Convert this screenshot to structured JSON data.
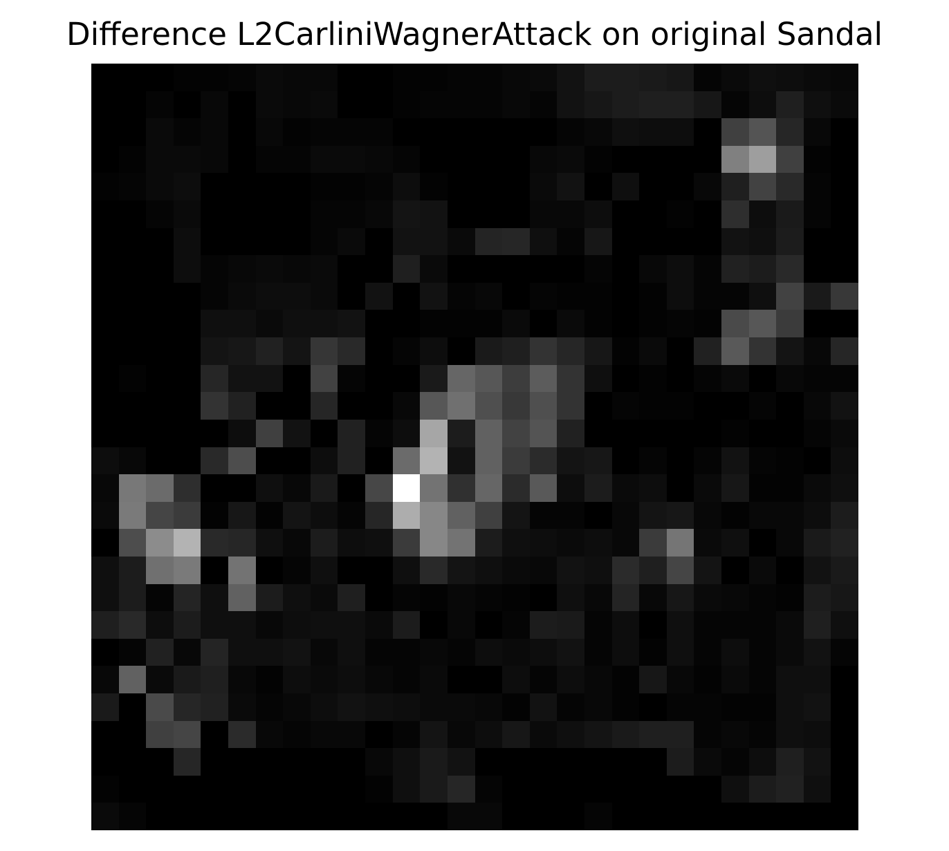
{
  "chart_data": {
    "type": "heatmap",
    "title": "Difference L2CarliniWagnerAttack on original Sandal",
    "colormap": "gray",
    "value_range": [
      0,
      1
    ],
    "axes_visible": false,
    "rows": 28,
    "cols": 28,
    "values": [
      [
        0.0,
        0.0,
        0.0,
        0.01,
        0.01,
        0.02,
        0.04,
        0.03,
        0.03,
        0.0,
        0.0,
        0.01,
        0.01,
        0.02,
        0.02,
        0.03,
        0.04,
        0.07,
        0.11,
        0.11,
        0.1,
        0.09,
        0.02,
        0.04,
        0.06,
        0.05,
        0.04,
        0.03
      ],
      [
        0.0,
        0.0,
        0.02,
        0.0,
        0.03,
        0.0,
        0.04,
        0.03,
        0.04,
        0.0,
        0.0,
        0.01,
        0.02,
        0.02,
        0.02,
        0.03,
        0.02,
        0.07,
        0.09,
        0.11,
        0.12,
        0.12,
        0.09,
        0.02,
        0.05,
        0.12,
        0.06,
        0.04
      ],
      [
        0.0,
        0.0,
        0.04,
        0.02,
        0.03,
        0.0,
        0.03,
        0.01,
        0.02,
        0.02,
        0.02,
        0.0,
        0.0,
        0.0,
        0.0,
        0.0,
        0.0,
        0.02,
        0.03,
        0.06,
        0.05,
        0.05,
        0.0,
        0.25,
        0.33,
        0.15,
        0.03,
        0.0
      ],
      [
        0.0,
        0.01,
        0.04,
        0.04,
        0.03,
        0.0,
        0.02,
        0.02,
        0.04,
        0.04,
        0.03,
        0.02,
        0.0,
        0.0,
        0.0,
        0.0,
        0.03,
        0.04,
        0.01,
        0.0,
        0.0,
        0.0,
        0.0,
        0.5,
        0.62,
        0.25,
        0.01,
        0.0
      ],
      [
        0.01,
        0.02,
        0.04,
        0.05,
        0.0,
        0.0,
        0.0,
        0.0,
        0.01,
        0.01,
        0.02,
        0.05,
        0.01,
        0.0,
        0.0,
        0.0,
        0.04,
        0.07,
        0.0,
        0.06,
        0.0,
        0.0,
        0.03,
        0.12,
        0.26,
        0.16,
        0.02,
        0.0
      ],
      [
        0.0,
        0.0,
        0.02,
        0.04,
        0.0,
        0.0,
        0.0,
        0.0,
        0.02,
        0.02,
        0.03,
        0.08,
        0.07,
        0.0,
        0.0,
        0.0,
        0.03,
        0.03,
        0.05,
        0.0,
        0.0,
        0.01,
        0.0,
        0.18,
        0.05,
        0.1,
        0.02,
        0.0
      ],
      [
        0.0,
        0.0,
        0.0,
        0.05,
        0.0,
        0.0,
        0.0,
        0.0,
        0.02,
        0.04,
        0.0,
        0.07,
        0.07,
        0.04,
        0.14,
        0.15,
        0.06,
        0.02,
        0.09,
        0.0,
        0.0,
        0.0,
        0.0,
        0.07,
        0.06,
        0.11,
        0.0,
        0.0
      ],
      [
        0.0,
        0.0,
        0.0,
        0.05,
        0.02,
        0.03,
        0.04,
        0.03,
        0.04,
        0.0,
        0.0,
        0.12,
        0.04,
        0.0,
        0.0,
        0.0,
        0.0,
        0.0,
        0.02,
        0.0,
        0.03,
        0.05,
        0.02,
        0.13,
        0.11,
        0.16,
        0.0,
        0.0
      ],
      [
        0.0,
        0.0,
        0.0,
        0.0,
        0.02,
        0.04,
        0.05,
        0.05,
        0.04,
        0.0,
        0.07,
        0.0,
        0.07,
        0.02,
        0.03,
        0.0,
        0.02,
        0.01,
        0.01,
        0.0,
        0.01,
        0.05,
        0.02,
        0.02,
        0.06,
        0.26,
        0.1,
        0.22
      ],
      [
        0.0,
        0.0,
        0.0,
        0.0,
        0.06,
        0.06,
        0.04,
        0.06,
        0.06,
        0.07,
        0.0,
        0.0,
        0.01,
        0.01,
        0.01,
        0.04,
        0.0,
        0.04,
        0.01,
        0.0,
        0.01,
        0.02,
        0.01,
        0.29,
        0.34,
        0.23,
        0.0,
        0.0
      ],
      [
        0.0,
        0.0,
        0.0,
        0.0,
        0.08,
        0.09,
        0.13,
        0.08,
        0.21,
        0.16,
        0.0,
        0.02,
        0.05,
        0.0,
        0.1,
        0.12,
        0.2,
        0.15,
        0.09,
        0.01,
        0.04,
        0.0,
        0.13,
        0.35,
        0.2,
        0.08,
        0.03,
        0.15
      ],
      [
        0.0,
        0.01,
        0.0,
        0.0,
        0.15,
        0.07,
        0.07,
        0.0,
        0.26,
        0.02,
        0.0,
        0.0,
        0.1,
        0.4,
        0.34,
        0.24,
        0.36,
        0.2,
        0.06,
        0.0,
        0.01,
        0.0,
        0.02,
        0.04,
        0.0,
        0.03,
        0.02,
        0.02
      ],
      [
        0.0,
        0.0,
        0.0,
        0.0,
        0.2,
        0.13,
        0.0,
        0.0,
        0.15,
        0.0,
        0.0,
        0.03,
        0.34,
        0.44,
        0.31,
        0.22,
        0.31,
        0.2,
        0.0,
        0.02,
        0.01,
        0.01,
        0.0,
        0.0,
        0.02,
        0.0,
        0.03,
        0.07
      ],
      [
        0.0,
        0.0,
        0.0,
        0.0,
        0.0,
        0.05,
        0.25,
        0.07,
        0.0,
        0.13,
        0.02,
        0.05,
        0.65,
        0.11,
        0.38,
        0.26,
        0.33,
        0.13,
        0.0,
        0.0,
        0.0,
        0.0,
        0.0,
        0.01,
        0.0,
        0.0,
        0.02,
        0.04
      ],
      [
        0.05,
        0.03,
        0.0,
        0.0,
        0.16,
        0.3,
        0.0,
        0.0,
        0.05,
        0.13,
        0.0,
        0.42,
        0.7,
        0.07,
        0.38,
        0.23,
        0.17,
        0.08,
        0.09,
        0.0,
        0.02,
        0.0,
        0.02,
        0.07,
        0.02,
        0.01,
        0.0,
        0.05
      ],
      [
        0.03,
        0.47,
        0.42,
        0.18,
        0.0,
        0.0,
        0.06,
        0.03,
        0.1,
        0.0,
        0.28,
        1.0,
        0.45,
        0.19,
        0.4,
        0.17,
        0.35,
        0.05,
        0.11,
        0.04,
        0.05,
        0.0,
        0.04,
        0.09,
        0.01,
        0.01,
        0.04,
        0.06
      ],
      [
        0.04,
        0.48,
        0.27,
        0.23,
        0.01,
        0.09,
        0.01,
        0.08,
        0.05,
        0.02,
        0.15,
        0.68,
        0.53,
        0.38,
        0.25,
        0.08,
        0.02,
        0.02,
        0.0,
        0.03,
        0.08,
        0.09,
        0.03,
        0.01,
        0.03,
        0.03,
        0.05,
        0.11
      ],
      [
        0.0,
        0.3,
        0.55,
        0.7,
        0.16,
        0.15,
        0.06,
        0.03,
        0.11,
        0.05,
        0.06,
        0.23,
        0.53,
        0.45,
        0.11,
        0.06,
        0.05,
        0.04,
        0.05,
        0.03,
        0.23,
        0.46,
        0.04,
        0.06,
        0.0,
        0.03,
        0.1,
        0.13
      ],
      [
        0.06,
        0.11,
        0.44,
        0.48,
        0.0,
        0.45,
        0.0,
        0.02,
        0.06,
        0.0,
        0.0,
        0.06,
        0.16,
        0.08,
        0.06,
        0.04,
        0.03,
        0.07,
        0.06,
        0.17,
        0.12,
        0.27,
        0.08,
        0.0,
        0.04,
        0.0,
        0.07,
        0.1
      ],
      [
        0.06,
        0.11,
        0.02,
        0.14,
        0.06,
        0.38,
        0.11,
        0.06,
        0.04,
        0.12,
        0.0,
        0.02,
        0.01,
        0.03,
        0.02,
        0.01,
        0.0,
        0.06,
        0.03,
        0.14,
        0.03,
        0.09,
        0.04,
        0.03,
        0.02,
        0.01,
        0.11,
        0.09
      ],
      [
        0.12,
        0.16,
        0.05,
        0.11,
        0.06,
        0.06,
        0.03,
        0.05,
        0.06,
        0.06,
        0.04,
        0.11,
        0.0,
        0.03,
        0.0,
        0.02,
        0.11,
        0.1,
        0.02,
        0.05,
        0.0,
        0.06,
        0.02,
        0.02,
        0.02,
        0.04,
        0.12,
        0.06
      ],
      [
        0.0,
        0.02,
        0.13,
        0.03,
        0.14,
        0.06,
        0.06,
        0.07,
        0.03,
        0.06,
        0.02,
        0.02,
        0.03,
        0.02,
        0.05,
        0.04,
        0.05,
        0.07,
        0.02,
        0.05,
        0.01,
        0.06,
        0.02,
        0.05,
        0.02,
        0.04,
        0.07,
        0.02
      ],
      [
        0.03,
        0.38,
        0.04,
        0.1,
        0.12,
        0.03,
        0.01,
        0.05,
        0.04,
        0.05,
        0.03,
        0.02,
        0.04,
        0.0,
        0.0,
        0.05,
        0.02,
        0.05,
        0.03,
        0.01,
        0.09,
        0.03,
        0.01,
        0.04,
        0.02,
        0.06,
        0.06,
        0.0
      ],
      [
        0.1,
        0.0,
        0.29,
        0.15,
        0.13,
        0.04,
        0.02,
        0.03,
        0.05,
        0.07,
        0.06,
        0.05,
        0.04,
        0.04,
        0.03,
        0.01,
        0.07,
        0.02,
        0.03,
        0.01,
        0.0,
        0.02,
        0.02,
        0.01,
        0.01,
        0.06,
        0.07,
        0.0
      ],
      [
        0.0,
        0.0,
        0.25,
        0.27,
        0.0,
        0.17,
        0.03,
        0.02,
        0.03,
        0.03,
        0.0,
        0.02,
        0.08,
        0.03,
        0.05,
        0.09,
        0.04,
        0.06,
        0.08,
        0.1,
        0.12,
        0.12,
        0.02,
        0.03,
        0.02,
        0.06,
        0.05,
        0.0
      ],
      [
        0.0,
        0.0,
        0.0,
        0.15,
        0.0,
        0.0,
        0.0,
        0.0,
        0.0,
        0.0,
        0.03,
        0.06,
        0.1,
        0.07,
        0.0,
        0.0,
        0.0,
        0.0,
        0.0,
        0.0,
        0.0,
        0.11,
        0.04,
        0.02,
        0.05,
        0.12,
        0.07,
        0.0
      ],
      [
        0.01,
        0.0,
        0.0,
        0.0,
        0.0,
        0.0,
        0.0,
        0.0,
        0.0,
        0.0,
        0.01,
        0.06,
        0.1,
        0.15,
        0.02,
        0.0,
        0.0,
        0.0,
        0.0,
        0.0,
        0.0,
        0.0,
        0.0,
        0.06,
        0.11,
        0.13,
        0.06,
        0.0
      ],
      [
        0.04,
        0.02,
        0.0,
        0.0,
        0.0,
        0.0,
        0.0,
        0.0,
        0.0,
        0.0,
        0.0,
        0.0,
        0.0,
        0.03,
        0.03,
        0.0,
        0.0,
        0.0,
        0.02,
        0.0,
        0.0,
        0.0,
        0.0,
        0.0,
        0.0,
        0.0,
        0.0,
        0.0
      ]
    ]
  }
}
